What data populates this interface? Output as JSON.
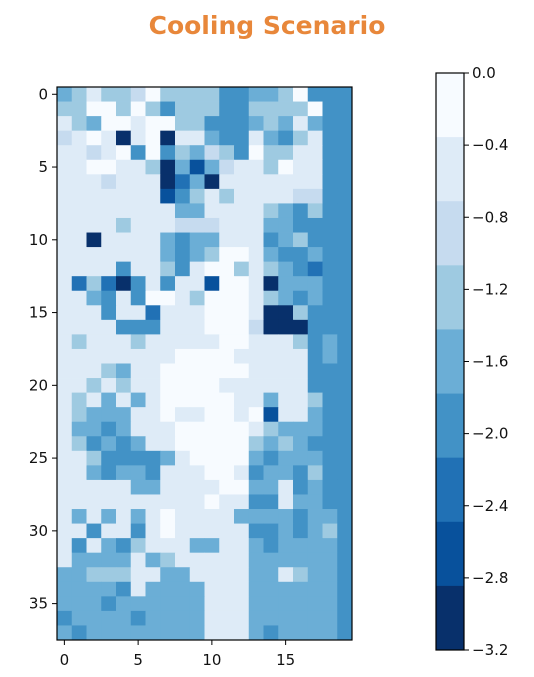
{
  "title_color": "#E8873A",
  "chart_data": {
    "type": "heatmap",
    "title": "Cooling Scenario",
    "xlabel": "",
    "ylabel": "",
    "rows": 38,
    "cols": 20,
    "xlim": [
      -0.5,
      19.5
    ],
    "ylim": [
      37.5,
      -0.5
    ],
    "x_ticks": [
      0,
      5,
      10,
      15
    ],
    "y_ticks": [
      0,
      5,
      10,
      15,
      20,
      25,
      30,
      35
    ],
    "colorbar": {
      "min": -3.2,
      "max": 0.0,
      "levels": [
        0.0,
        -0.4,
        -0.8,
        -1.2,
        -1.6,
        -2.0,
        -2.4,
        -2.8,
        -3.2
      ],
      "tick_labels": [
        "0.0",
        "−0.4",
        "−0.8",
        "−1.2",
        "−1.6",
        "−2.0",
        "−2.4",
        "−2.8",
        "−3.2"
      ],
      "colors": [
        "#F7FBFF",
        "#DEEBF7",
        "#C6DBEF",
        "#9ECAE1",
        "#6BAED6",
        "#4292C6",
        "#2171B5",
        "#08519C",
        "#08306B"
      ]
    },
    "values": [
      [
        -1.6,
        -1.4,
        -0.6,
        -1.4,
        -1.4,
        -0.8,
        -0.2,
        -1.4,
        -1.2,
        -1.4,
        -1.4,
        -1.8,
        -1.8,
        -1.6,
        -1.6,
        -1.4,
        -0.1,
        -1.8,
        -2.0,
        -1.8
      ],
      [
        -1.4,
        -1.4,
        -0.1,
        -0.1,
        -1.4,
        -0.1,
        -1.2,
        -1.8,
        -1.4,
        -1.2,
        -1.4,
        -1.8,
        -1.8,
        -1.4,
        -1.2,
        -1.4,
        -1.2,
        -0.1,
        -2.0,
        -1.8
      ],
      [
        -0.4,
        -1.4,
        -1.6,
        -0.2,
        -0.2,
        -0.6,
        -0.2,
        -0.2,
        -1.2,
        -1.4,
        -1.8,
        -1.8,
        -1.8,
        -1.6,
        -1.4,
        -1.6,
        -0.6,
        -1.6,
        -1.8,
        -1.8
      ],
      [
        -0.8,
        -0.4,
        -0.2,
        -0.6,
        -3.0,
        -0.6,
        -0.2,
        -3.0,
        -0.6,
        -0.4,
        -1.6,
        -1.8,
        -1.8,
        -0.6,
        -1.6,
        -2.0,
        -1.2,
        -0.6,
        -1.8,
        -1.8
      ],
      [
        -0.6,
        -0.4,
        -0.8,
        -0.6,
        -0.2,
        -2.0,
        -0.2,
        -2.0,
        -1.2,
        -1.6,
        -0.8,
        -1.2,
        -1.8,
        -0.2,
        -1.4,
        -1.4,
        -0.4,
        -0.4,
        -1.8,
        -1.8
      ],
      [
        -0.6,
        -0.6,
        -0.2,
        -0.2,
        -0.6,
        -0.6,
        -1.2,
        -3.0,
        -1.6,
        -2.8,
        -1.6,
        -0.8,
        -0.4,
        -0.4,
        -1.2,
        -0.2,
        -0.4,
        -0.4,
        -1.8,
        -1.8
      ],
      [
        -0.6,
        -0.6,
        -0.6,
        -0.8,
        -0.6,
        -0.6,
        -0.6,
        -3.0,
        -2.4,
        -1.6,
        -3.0,
        -0.4,
        -0.4,
        -0.4,
        -0.4,
        -0.4,
        -0.4,
        -0.4,
        -1.8,
        -1.8
      ],
      [
        -0.6,
        -0.6,
        -0.6,
        -0.6,
        -0.6,
        -0.6,
        -0.6,
        -2.8,
        -1.8,
        -1.4,
        -0.6,
        -1.2,
        -0.6,
        -0.4,
        -0.6,
        -0.6,
        -0.8,
        -0.8,
        -1.8,
        -1.8
      ],
      [
        -0.6,
        -0.6,
        -0.6,
        -0.4,
        -0.6,
        -0.6,
        -0.6,
        -0.6,
        -1.6,
        -1.6,
        -0.6,
        -0.4,
        -0.6,
        -0.6,
        -1.4,
        -1.6,
        -1.8,
        -1.2,
        -1.8,
        -1.8
      ],
      [
        -0.6,
        -0.6,
        -0.6,
        -0.4,
        -1.2,
        -0.6,
        -0.6,
        -0.6,
        -0.8,
        -0.8,
        -0.8,
        -0.6,
        -0.4,
        -0.6,
        -1.6,
        -1.6,
        -1.8,
        -1.8,
        -1.8,
        -1.8
      ],
      [
        -0.6,
        -0.6,
        -3.0,
        -0.6,
        -0.6,
        -0.6,
        -0.6,
        -1.6,
        -1.8,
        -1.6,
        -1.6,
        -0.6,
        -0.4,
        -0.4,
        -1.8,
        -1.6,
        -1.2,
        -1.8,
        -1.8,
        -1.8
      ],
      [
        -0.6,
        -0.6,
        -0.6,
        -0.6,
        -0.6,
        -0.6,
        -0.6,
        -1.6,
        -1.8,
        -1.6,
        -1.4,
        -0.2,
        -0.2,
        -0.6,
        -1.6,
        -1.8,
        -1.8,
        -1.6,
        -1.8,
        -1.8
      ],
      [
        -0.6,
        -0.6,
        -0.6,
        -0.6,
        -1.8,
        -0.6,
        -0.6,
        -1.2,
        -2.0,
        -0.6,
        -0.2,
        -0.2,
        -1.2,
        -0.6,
        -1.4,
        -1.6,
        -1.8,
        -2.4,
        -1.8,
        -1.8
      ],
      [
        -0.6,
        -2.4,
        -1.2,
        -2.4,
        -3.0,
        -1.8,
        -0.6,
        -1.8,
        -0.6,
        -0.4,
        -2.8,
        -0.2,
        -0.2,
        -0.6,
        -3.0,
        -1.6,
        -1.6,
        -1.6,
        -1.8,
        -1.8
      ],
      [
        -0.6,
        -0.6,
        -1.6,
        -1.8,
        -0.6,
        -2.0,
        -0.2,
        -0.2,
        -0.6,
        -1.4,
        -0.2,
        -0.2,
        -0.2,
        -0.6,
        -1.4,
        -1.6,
        -1.8,
        -1.6,
        -1.8,
        -1.8
      ],
      [
        -0.6,
        -0.6,
        -0.6,
        -2.0,
        -0.6,
        -0.6,
        -2.4,
        -0.6,
        -0.6,
        -0.6,
        -0.2,
        -0.2,
        -0.2,
        -0.6,
        -3.0,
        -3.0,
        -1.2,
        -1.8,
        -1.8,
        -1.8
      ],
      [
        -0.6,
        -0.6,
        -0.6,
        -0.6,
        -2.0,
        -2.0,
        -1.8,
        -0.6,
        -0.6,
        -0.6,
        -0.2,
        -0.2,
        -0.2,
        -0.8,
        -3.0,
        -3.0,
        -3.0,
        -1.8,
        -1.8,
        -1.8
      ],
      [
        -0.6,
        -1.2,
        -0.6,
        -0.6,
        -0.6,
        -1.2,
        -0.6,
        -0.6,
        -0.6,
        -0.6,
        -0.6,
        -0.2,
        -0.2,
        -0.6,
        -0.6,
        -0.6,
        -1.2,
        -1.8,
        -1.6,
        -1.8
      ],
      [
        -0.6,
        -0.6,
        -0.6,
        -0.6,
        -0.6,
        -0.6,
        -0.6,
        -0.6,
        -0.2,
        -0.2,
        -0.2,
        -0.2,
        -0.6,
        -0.6,
        -0.6,
        -0.6,
        -0.6,
        -2.0,
        -1.6,
        -1.8
      ],
      [
        -0.6,
        -0.6,
        -0.6,
        -1.2,
        -1.6,
        -0.6,
        -0.6,
        -0.2,
        -0.2,
        -0.2,
        -0.2,
        -0.2,
        -0.2,
        -0.6,
        -0.6,
        -0.6,
        -0.6,
        -1.8,
        -1.8,
        -1.8
      ],
      [
        -0.6,
        -0.6,
        -1.2,
        -0.6,
        -1.2,
        -0.6,
        -0.6,
        -0.2,
        -0.2,
        -0.2,
        -0.2,
        -0.6,
        -0.6,
        -0.6,
        -0.6,
        -0.6,
        -0.6,
        -1.8,
        -1.8,
        -1.8
      ],
      [
        -0.6,
        -1.2,
        -0.6,
        -1.6,
        -0.6,
        -1.6,
        -0.6,
        -0.2,
        -0.2,
        -0.2,
        -0.2,
        -0.2,
        -0.6,
        -0.6,
        -1.6,
        -0.6,
        -0.6,
        -1.2,
        -1.8,
        -1.8
      ],
      [
        -0.6,
        -1.2,
        -1.6,
        -1.6,
        -1.6,
        -0.6,
        -0.6,
        -0.2,
        -0.6,
        -0.6,
        -0.2,
        -0.2,
        -0.6,
        -0.2,
        -2.8,
        -0.6,
        -0.6,
        -1.6,
        -1.8,
        -1.8
      ],
      [
        -0.6,
        -1.6,
        -1.6,
        -2.0,
        -1.6,
        -0.6,
        -0.6,
        -0.6,
        -0.2,
        -0.2,
        -0.2,
        -0.2,
        -0.2,
        -0.6,
        -1.2,
        -1.6,
        -1.6,
        -1.6,
        -1.8,
        -1.8
      ],
      [
        -0.6,
        -1.4,
        -1.8,
        -1.6,
        -1.8,
        -1.6,
        -0.6,
        -0.6,
        -0.2,
        -0.2,
        -0.2,
        -0.2,
        -0.2,
        -1.4,
        -1.6,
        -1.2,
        -1.6,
        -2.0,
        -1.8,
        -1.8
      ],
      [
        -0.6,
        -0.6,
        -1.4,
        -1.8,
        -2.0,
        -1.8,
        -1.8,
        -1.6,
        -0.6,
        -0.2,
        -0.2,
        -0.2,
        -0.2,
        -1.6,
        -1.8,
        -1.6,
        -1.6,
        -1.6,
        -1.8,
        -1.8
      ],
      [
        -0.6,
        -0.6,
        -1.6,
        -1.8,
        -1.6,
        -1.6,
        -1.8,
        -0.6,
        -0.6,
        -0.6,
        -0.2,
        -0.2,
        -0.4,
        -1.8,
        -1.6,
        -1.6,
        -1.8,
        -1.2,
        -1.8,
        -1.8
      ],
      [
        -0.6,
        -0.6,
        -0.6,
        -0.6,
        -0.6,
        -1.6,
        -1.6,
        -0.6,
        -0.6,
        -0.6,
        -0.6,
        -0.2,
        -0.2,
        -1.6,
        -1.6,
        -0.6,
        -1.8,
        -1.6,
        -1.8,
        -1.8
      ],
      [
        -0.6,
        -0.6,
        -0.6,
        -0.6,
        -0.6,
        -0.6,
        -0.6,
        -0.6,
        -0.6,
        -0.6,
        -0.2,
        -0.6,
        -0.6,
        -1.8,
        -1.8,
        -0.6,
        -1.6,
        -1.6,
        -1.8,
        -1.8
      ],
      [
        -0.6,
        -1.6,
        -0.6,
        -1.6,
        -0.6,
        -1.6,
        -0.6,
        -0.2,
        -0.6,
        -0.6,
        -0.6,
        -0.6,
        -1.6,
        -1.6,
        -1.6,
        -1.6,
        -1.8,
        -1.6,
        -1.6,
        -1.8
      ],
      [
        -0.6,
        -0.6,
        -2.0,
        -0.6,
        -0.6,
        -2.0,
        -0.6,
        -0.2,
        -0.6,
        -0.6,
        -0.6,
        -0.6,
        -0.6,
        -1.8,
        -2.0,
        -1.6,
        -2.0,
        -1.6,
        -1.2,
        -1.8
      ],
      [
        -0.6,
        -1.8,
        -0.6,
        -1.6,
        -2.0,
        -1.2,
        -0.6,
        -0.6,
        -0.6,
        -1.6,
        -1.6,
        -0.6,
        -0.6,
        -1.6,
        -1.8,
        -1.6,
        -1.6,
        -1.6,
        -1.6,
        -1.8
      ],
      [
        -0.6,
        -1.6,
        -1.6,
        -1.6,
        -1.6,
        -0.6,
        -1.6,
        -1.2,
        -0.6,
        -0.6,
        -0.6,
        -0.6,
        -0.6,
        -1.6,
        -1.6,
        -1.6,
        -1.6,
        -1.6,
        -1.6,
        -1.8
      ],
      [
        -1.6,
        -1.6,
        -1.2,
        -1.2,
        -1.2,
        -0.6,
        -0.6,
        -1.6,
        -1.6,
        -0.6,
        -0.6,
        -0.6,
        -0.6,
        -1.6,
        -1.6,
        -0.6,
        -1.2,
        -1.6,
        -1.6,
        -1.8
      ],
      [
        -1.6,
        -1.6,
        -1.6,
        -1.6,
        -1.8,
        -0.6,
        -1.6,
        -1.6,
        -1.6,
        -1.6,
        -0.6,
        -0.6,
        -0.6,
        -1.6,
        -1.6,
        -1.6,
        -1.6,
        -1.6,
        -1.6,
        -1.8
      ],
      [
        -1.6,
        -1.6,
        -1.6,
        -1.8,
        -1.6,
        -1.6,
        -1.6,
        -1.6,
        -1.6,
        -1.6,
        -0.6,
        -0.6,
        -0.6,
        -1.6,
        -1.6,
        -1.6,
        -1.6,
        -1.6,
        -1.6,
        -1.8
      ],
      [
        -1.8,
        -1.6,
        -1.6,
        -1.6,
        -1.6,
        -1.8,
        -1.6,
        -1.6,
        -1.6,
        -1.6,
        -0.6,
        -0.6,
        -0.6,
        -1.6,
        -1.6,
        -1.6,
        -1.6,
        -1.6,
        -1.6,
        -1.8
      ],
      [
        -1.6,
        -1.8,
        -1.6,
        -1.6,
        -1.6,
        -1.6,
        -1.6,
        -1.6,
        -1.6,
        -1.6,
        -0.6,
        -0.6,
        -0.6,
        -1.6,
        -1.8,
        -1.6,
        -1.6,
        -1.6,
        -1.6,
        -1.8
      ]
    ]
  }
}
